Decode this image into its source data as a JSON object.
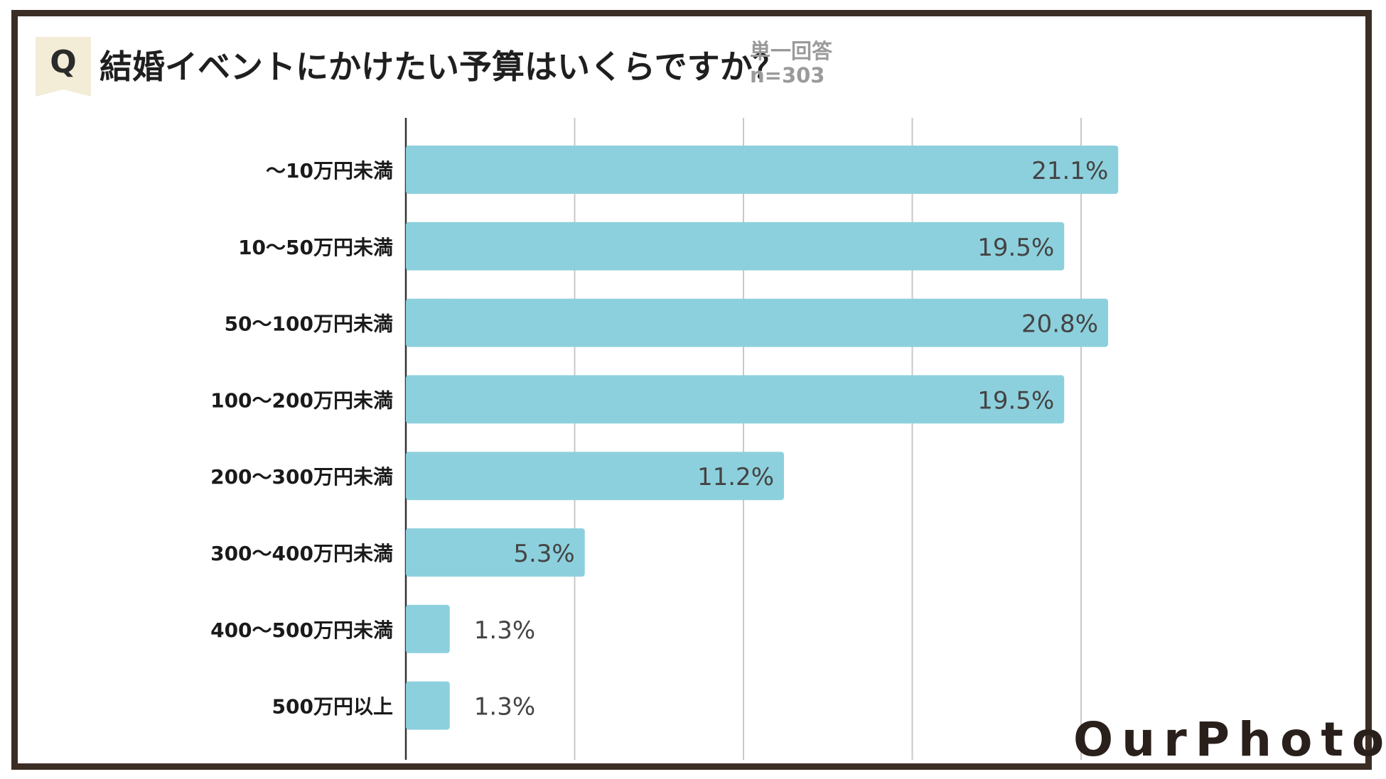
{
  "header": {
    "q_label": "Q",
    "title": "結婚イベントにかけたい予算はいくらですか？",
    "answer_type": "単一回答",
    "sample": "n=303"
  },
  "brand": {
    "logo_text": "OurPhoto"
  },
  "colors": {
    "bar": "#8dd0dd",
    "grid": "#c8c8c8",
    "axis": "#333333",
    "frame": "#3b2e25",
    "badge": "#f3ecd7"
  },
  "chart_data": {
    "type": "bar",
    "orientation": "horizontal",
    "title": "結婚イベントにかけたい予算はいくらですか？",
    "xlabel": "",
    "ylabel": "",
    "xlim": [
      0,
      25
    ],
    "grid": true,
    "categories": [
      "〜10万円未満",
      "10〜50万円未満",
      "50〜100万円未満",
      "100〜200万円未満",
      "200〜300万円未満",
      "300〜400万円未満",
      "400〜500万円未満",
      "500万円以上"
    ],
    "values": [
      21.1,
      19.5,
      20.8,
      19.5,
      11.2,
      5.3,
      1.3,
      1.3
    ],
    "value_labels": [
      "21.1%",
      "19.5%",
      "20.8%",
      "19.5%",
      "11.2%",
      "5.3%",
      "1.3%",
      "1.3%"
    ]
  }
}
